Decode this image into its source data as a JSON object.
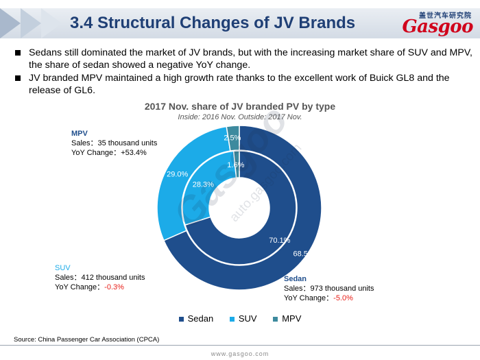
{
  "header": {
    "title": "3.4 Structural Changes of JV Brands",
    "logo_cn": "盖世汽车研究院",
    "logo_main": "Gasgoo"
  },
  "bullets": [
    "Sedans still dominated the market of JV brands, but with the increasing market share of SUV and MPV, the share of sedan showed a negative YoY change.",
    "JV branded MPV maintained a high growth rate thanks to the excellent work of Buick GL8 and the release of GL6."
  ],
  "chart_data": {
    "type": "pie",
    "title": "2017 Nov. share of JV branded PV by type",
    "subtitle": "Inside: 2016 Nov.  Outside: 2017 Nov.",
    "categories": [
      "Sedan",
      "SUV",
      "MPV"
    ],
    "colors": [
      "#1f4e8c",
      "#1cabe8",
      "#3d8a9e"
    ],
    "series": [
      {
        "name": "Inside: 2016 Nov.",
        "values": [
          70.1,
          28.3,
          1.6
        ],
        "labels": [
          "70.1%",
          "28.3%",
          "1.6%"
        ]
      },
      {
        "name": "Outside: 2017 Nov.",
        "values": [
          68.5,
          29.0,
          2.5
        ],
        "labels": [
          "68.5%",
          "29.0%",
          "2.5%"
        ]
      }
    ],
    "legend_position": "bottom",
    "annotations": {
      "mpv": {
        "name": "MPV",
        "sales": "Sales：35 thousand units",
        "yoy_label": "YoY Change：",
        "yoy_value": "+53.4%"
      },
      "suv": {
        "name": "SUV",
        "sales": "Sales：412 thousand units",
        "yoy_label": "YoY Change：",
        "yoy_value": "-0.3%"
      },
      "sedan": {
        "name": "Sedan",
        "sales": "Sales：973 thousand units",
        "yoy_label": "YoY Change：",
        "yoy_value": "-5.0%"
      }
    }
  },
  "watermark": {
    "brand": "Gasgoo",
    "url": "auto.gasgoo.com"
  },
  "source": "Source: China Passenger Car Association (CPCA)",
  "footer_url": "www.gasgoo.com"
}
